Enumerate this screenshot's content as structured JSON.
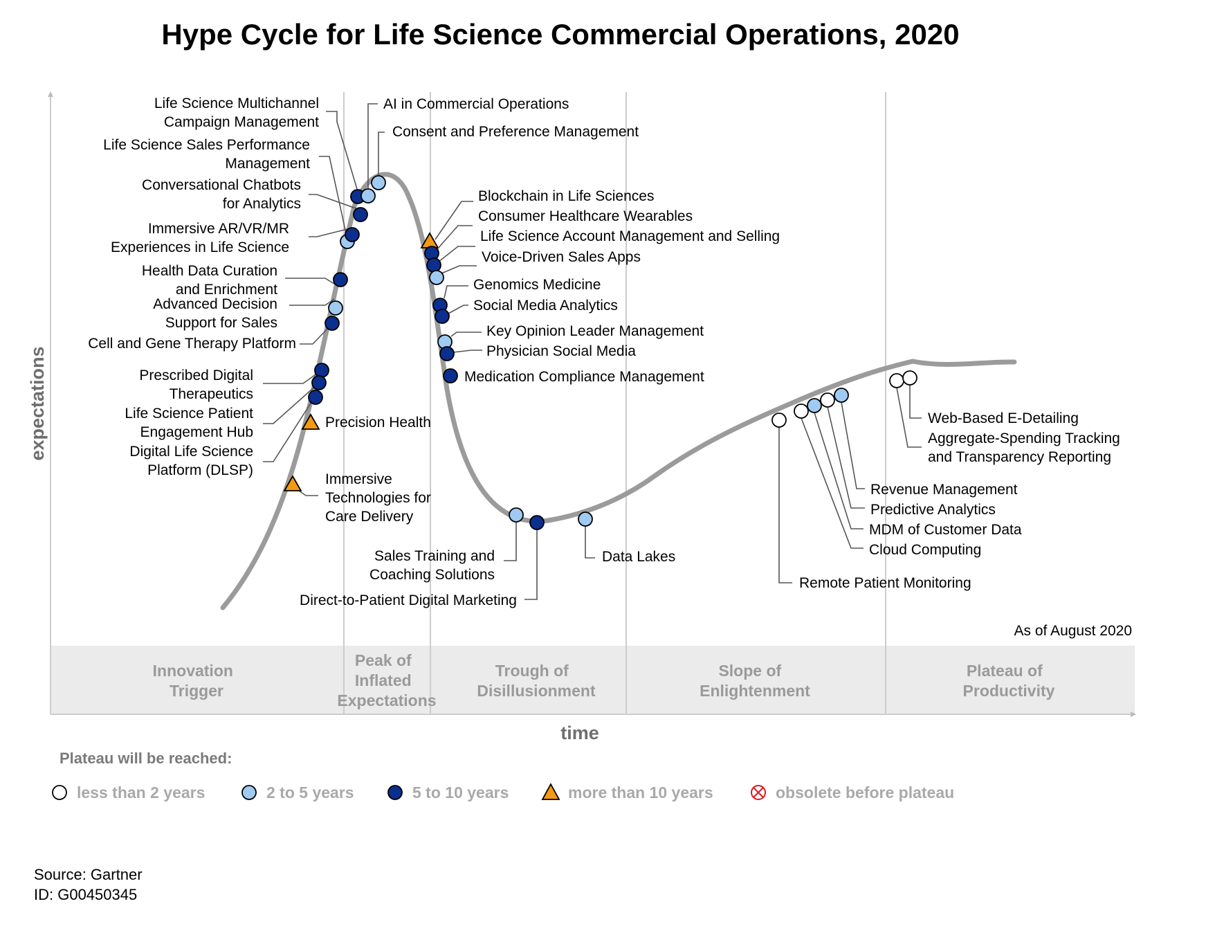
{
  "title": "Hype Cycle for Life Science Commercial Operations, 2020",
  "axis": {
    "y_label": "expectations",
    "x_label": "time"
  },
  "as_of": "As of August 2020",
  "phases": [
    {
      "line1": "Innovation",
      "line2": "Trigger"
    },
    {
      "line1": "Peak of",
      "line2": "Inflated",
      "line3": "Expectations"
    },
    {
      "line1": "Trough of",
      "line2": "Disillusionment"
    },
    {
      "line1": "Slope of",
      "line2": "Enlightenment"
    },
    {
      "line1": "Plateau of",
      "line2": "Productivity"
    }
  ],
  "legend": {
    "title": "Plateau will be reached:",
    "items": [
      {
        "key": "lt2",
        "label": "less than 2 years"
      },
      {
        "key": "2to5",
        "label": "2 to 5 years"
      },
      {
        "key": "5to10",
        "label": "5 to 10 years"
      },
      {
        "key": "gt10",
        "label": "more than 10 years"
      },
      {
        "key": "obsolete",
        "label": "obsolete before plateau"
      }
    ]
  },
  "colors": {
    "curve": "#9b9b9b",
    "lt2": "#ffffff",
    "2to5": "#9fcbf2",
    "5to10": "#0b2f8f",
    "gt10": "#f39a12",
    "obsolete": "#e0161b",
    "phase_band": "#ebebeb",
    "divider": "#cccccc"
  },
  "source": {
    "line1": "Source: Gartner",
    "line2": "ID: G00450345"
  },
  "technologies": [
    {
      "name": "Life Science Multichannel Campaign Management",
      "lines": [
        "Life Science Multichannel",
        "Campaign Management"
      ],
      "phase": "Innovation Trigger",
      "plateau": "5to10"
    },
    {
      "name": "AI in Commercial Operations",
      "lines": [
        "AI in Commercial Operations"
      ],
      "phase": "Peak of Inflated Expectations",
      "plateau": "2to5"
    },
    {
      "name": "Consent and Preference Management",
      "lines": [
        "Consent and Preference Management"
      ],
      "phase": "Peak of Inflated Expectations",
      "plateau": "2to5"
    },
    {
      "name": "Life Science Sales Performance Management",
      "lines": [
        "Life Science Sales Performance",
        "Management"
      ],
      "phase": "Innovation Trigger",
      "plateau": "2to5"
    },
    {
      "name": "Conversational Chatbots for Analytics",
      "lines": [
        "Conversational Chatbots",
        "for Analytics"
      ],
      "phase": "Innovation Trigger",
      "plateau": "5to10"
    },
    {
      "name": "Immersive AR/VR/MR Experiences in Life Science",
      "lines": [
        "Immersive AR/VR/MR",
        "Experiences in Life Science"
      ],
      "phase": "Innovation Trigger",
      "plateau": "5to10"
    },
    {
      "name": "Health Data Curation and Enrichment",
      "lines": [
        "Health Data Curation",
        "and Enrichment"
      ],
      "phase": "Innovation Trigger",
      "plateau": "5to10"
    },
    {
      "name": "Advanced Decision Support for Sales",
      "lines": [
        "Advanced Decision",
        "Support for Sales"
      ],
      "phase": "Innovation Trigger",
      "plateau": "2to5"
    },
    {
      "name": "Cell and Gene Therapy Platform",
      "lines": [
        "Cell and Gene Therapy Platform"
      ],
      "phase": "Innovation Trigger",
      "plateau": "5to10"
    },
    {
      "name": "Prescribed Digital Therapeutics",
      "lines": [
        "Prescribed Digital",
        "Therapeutics"
      ],
      "phase": "Innovation Trigger",
      "plateau": "5to10"
    },
    {
      "name": "Life Science Patient Engagement Hub",
      "lines": [
        "Life Science Patient",
        "Engagement Hub"
      ],
      "phase": "Innovation Trigger",
      "plateau": "5to10"
    },
    {
      "name": "Digital Life Science Platform (DLSP)",
      "lines": [
        "Digital Life Science",
        "Platform (DLSP)"
      ],
      "phase": "Innovation Trigger",
      "plateau": "5to10"
    },
    {
      "name": "Precision Health",
      "lines": [
        "Precision Health"
      ],
      "phase": "Innovation Trigger",
      "plateau": "gt10"
    },
    {
      "name": "Immersive Technologies for Care Delivery",
      "lines": [
        "Immersive",
        "Technologies for",
        "Care Delivery"
      ],
      "phase": "Innovation Trigger",
      "plateau": "gt10"
    },
    {
      "name": "Blockchain in Life Sciences",
      "lines": [
        "Blockchain in Life Sciences"
      ],
      "phase": "Sliding into the Trough",
      "plateau": "gt10"
    },
    {
      "name": "Consumer Healthcare Wearables",
      "lines": [
        "Consumer Healthcare Wearables"
      ],
      "phase": "Sliding into the Trough",
      "plateau": "5to10"
    },
    {
      "name": "Life Science Account Management and Selling",
      "lines": [
        "Life Science Account Management and Selling"
      ],
      "phase": "Sliding into the Trough",
      "plateau": "5to10"
    },
    {
      "name": "Voice-Driven Sales Apps",
      "lines": [
        "Voice-Driven Sales Apps"
      ],
      "phase": "Sliding into the Trough",
      "plateau": "2to5"
    },
    {
      "name": "Genomics Medicine",
      "lines": [
        "Genomics Medicine"
      ],
      "phase": "Sliding into the Trough",
      "plateau": "5to10"
    },
    {
      "name": "Social Media Analytics",
      "lines": [
        "Social Media Analytics"
      ],
      "phase": "Sliding into the Trough",
      "plateau": "5to10"
    },
    {
      "name": "Key Opinion Leader Management",
      "lines": [
        "Key Opinion Leader Management"
      ],
      "phase": "Sliding into the Trough",
      "plateau": "2to5"
    },
    {
      "name": "Physician Social Media",
      "lines": [
        "Physician Social Media"
      ],
      "phase": "Sliding into the Trough",
      "plateau": "5to10"
    },
    {
      "name": "Medication Compliance Management",
      "lines": [
        "Medication Compliance Management"
      ],
      "phase": "Sliding into the Trough",
      "plateau": "5to10"
    },
    {
      "name": "Sales Training and Coaching Solutions",
      "lines": [
        "Sales Training and",
        "Coaching Solutions"
      ],
      "phase": "Trough of Disillusionment",
      "plateau": "2to5"
    },
    {
      "name": "Direct-to-Patient Digital Marketing",
      "lines": [
        "Direct-to-Patient Digital Marketing"
      ],
      "phase": "Trough of Disillusionment",
      "plateau": "5to10"
    },
    {
      "name": "Data Lakes",
      "lines": [
        "Data Lakes"
      ],
      "phase": "Trough of Disillusionment",
      "plateau": "2to5"
    },
    {
      "name": "Remote Patient Monitoring",
      "lines": [
        "Remote Patient Monitoring"
      ],
      "phase": "Slope of Enlightenment",
      "plateau": "lt2"
    },
    {
      "name": "Cloud Computing",
      "lines": [
        "Cloud Computing"
      ],
      "phase": "Slope of Enlightenment",
      "plateau": "lt2"
    },
    {
      "name": "MDM of Customer Data",
      "lines": [
        "MDM of Customer Data"
      ],
      "phase": "Slope of Enlightenment",
      "plateau": "2to5"
    },
    {
      "name": "Predictive Analytics",
      "lines": [
        "Predictive Analytics"
      ],
      "phase": "Slope of Enlightenment",
      "plateau": "lt2"
    },
    {
      "name": "Revenue Management",
      "lines": [
        "Revenue Management"
      ],
      "phase": "Slope of Enlightenment",
      "plateau": "2to5"
    },
    {
      "name": "Aggregate-Spending Tracking and Transparency Reporting",
      "lines": [
        "Aggregate-Spending Tracking",
        "and Transparency Reporting"
      ],
      "phase": "Plateau of Productivity",
      "plateau": "lt2"
    },
    {
      "name": "Web-Based E-Detailing",
      "lines": [
        "Web-Based E-Detailing"
      ],
      "phase": "Plateau of Productivity",
      "plateau": "lt2"
    }
  ]
}
